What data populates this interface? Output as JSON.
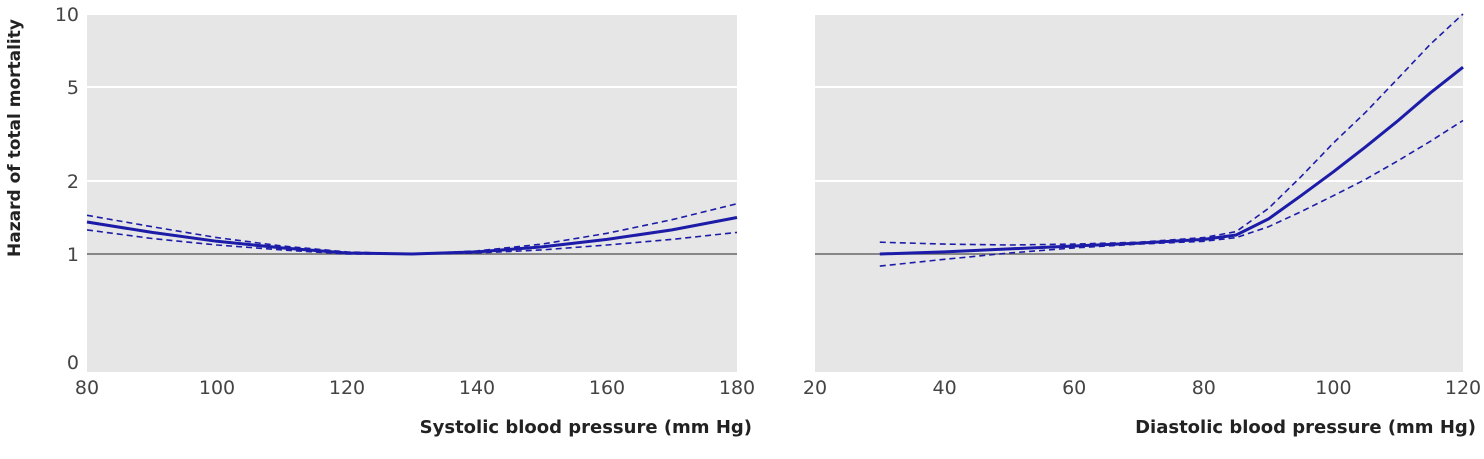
{
  "chart_data": [
    {
      "type": "line",
      "xlabel": "Systolic blood pressure (mm Hg)",
      "ylabel": "Hazard of total mortality",
      "xlim": [
        80,
        180
      ],
      "x_ticks": [
        "80",
        "100",
        "120",
        "140",
        "160",
        "180"
      ],
      "y_ticks": [
        "0",
        "1",
        "2",
        "5",
        "10"
      ],
      "y_scale": "log",
      "grid": true,
      "reference_line": 1,
      "series": [
        {
          "style": "solid",
          "x": [
            80,
            90,
            100,
            110,
            120,
            130,
            140,
            150,
            160,
            170,
            180
          ],
          "y": [
            1.36,
            1.23,
            1.13,
            1.06,
            1.01,
            1.0,
            1.02,
            1.07,
            1.15,
            1.26,
            1.42
          ]
        },
        {
          "style": "dashed",
          "x": [
            80,
            90,
            100,
            110,
            120,
            130,
            140,
            150,
            160,
            170,
            180
          ],
          "y": [
            1.45,
            1.3,
            1.17,
            1.08,
            1.02,
            1.0,
            1.03,
            1.1,
            1.22,
            1.39,
            1.62
          ]
        },
        {
          "style": "dashed",
          "x": [
            80,
            90,
            100,
            110,
            120,
            130,
            140,
            150,
            160,
            170,
            180
          ],
          "y": [
            1.26,
            1.16,
            1.09,
            1.04,
            1.0,
            1.0,
            1.01,
            1.04,
            1.09,
            1.15,
            1.23
          ]
        }
      ]
    },
    {
      "type": "line",
      "xlabel": "Diastolic blood pressure (mm Hg)",
      "ylabel": "",
      "xlim": [
        20,
        120
      ],
      "x_ticks": [
        "20",
        "40",
        "60",
        "80",
        "100",
        "120"
      ],
      "y_scale": "log",
      "grid": true,
      "reference_line": 1,
      "series": [
        {
          "style": "solid",
          "x": [
            30,
            40,
            50,
            60,
            70,
            80,
            85,
            90,
            95,
            100,
            105,
            110,
            115,
            120
          ],
          "y": [
            1.0,
            1.02,
            1.05,
            1.08,
            1.11,
            1.15,
            1.2,
            1.4,
            1.75,
            2.2,
            2.8,
            3.6,
            4.7,
            6.0
          ]
        },
        {
          "style": "dashed",
          "x": [
            30,
            40,
            50,
            60,
            70,
            80,
            85,
            90,
            95,
            100,
            105,
            110,
            115,
            120
          ],
          "y": [
            1.12,
            1.1,
            1.09,
            1.1,
            1.12,
            1.17,
            1.24,
            1.55,
            2.1,
            2.9,
            3.9,
            5.4,
            7.5,
            10.0
          ]
        },
        {
          "style": "dashed",
          "x": [
            30,
            40,
            50,
            60,
            70,
            80,
            85,
            90,
            95,
            100,
            105,
            110,
            115,
            120
          ],
          "y": [
            0.89,
            0.95,
            1.01,
            1.06,
            1.1,
            1.13,
            1.17,
            1.3,
            1.5,
            1.75,
            2.05,
            2.45,
            2.95,
            3.6
          ]
        }
      ]
    }
  ],
  "colors": {
    "panel": "#e6e6e6",
    "grid": "#ffffff",
    "reference": "#666666",
    "line": "#1c1ca8"
  }
}
